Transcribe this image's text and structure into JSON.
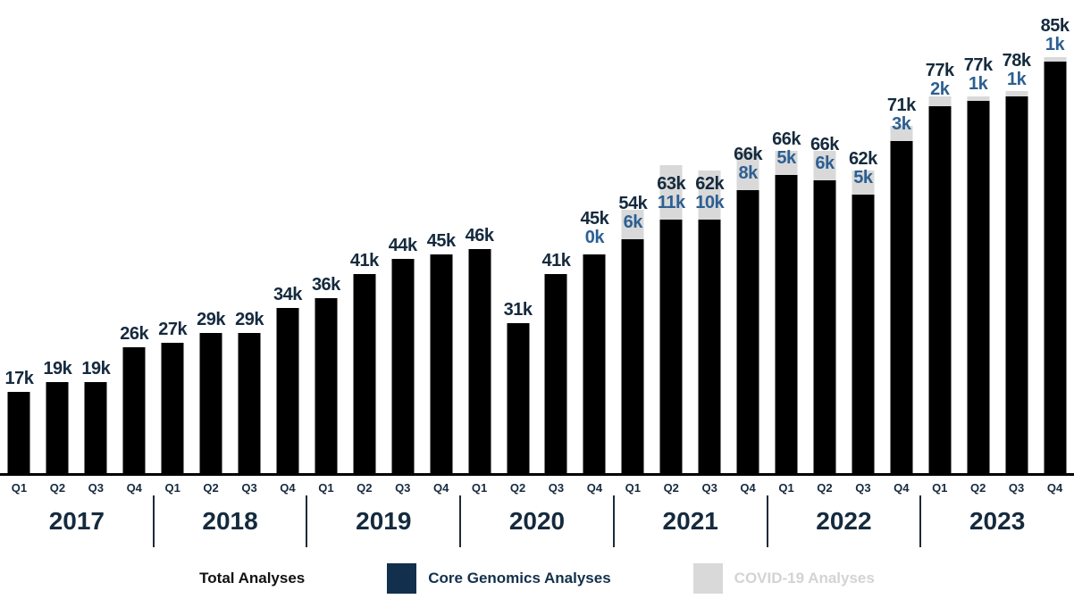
{
  "chart_data": {
    "type": "bar",
    "stacked": true,
    "title": "",
    "unit_suffix": "k",
    "ylim": [
      0,
      85
    ],
    "grid": false,
    "legend_position": "bottom",
    "categories": [
      "2017 Q1",
      "2017 Q2",
      "2017 Q3",
      "2017 Q4",
      "2018 Q1",
      "2018 Q2",
      "2018 Q3",
      "2018 Q4",
      "2019 Q1",
      "2019 Q2",
      "2019 Q3",
      "2019 Q4",
      "2020 Q1",
      "2020 Q2",
      "2020 Q3",
      "2020 Q4",
      "2021 Q1",
      "2021 Q2",
      "2021 Q3",
      "2021 Q4",
      "2022 Q1",
      "2022 Q2",
      "2022 Q3",
      "2022 Q4",
      "2023 Q1",
      "2023 Q2",
      "2023 Q3",
      "2023 Q4"
    ],
    "series": [
      {
        "name": "Core Genomics Analyses",
        "color": "#000000",
        "values": [
          17,
          19,
          19,
          26,
          27,
          29,
          29,
          34,
          36,
          41,
          44,
          45,
          46,
          31,
          41,
          45,
          48,
          52,
          52,
          58,
          61,
          60,
          57,
          68,
          75,
          76,
          77,
          84
        ]
      },
      {
        "name": "COVID-19 Analyses",
        "color": "#d9d9d9",
        "values": [
          0,
          0,
          0,
          0,
          0,
          0,
          0,
          0,
          0,
          0,
          0,
          0,
          0,
          0,
          0,
          0,
          6,
          11,
          10,
          8,
          5,
          6,
          5,
          3,
          2,
          1,
          1,
          1
        ]
      }
    ],
    "totals_k": [
      17,
      19,
      19,
      26,
      27,
      29,
      29,
      34,
      36,
      41,
      44,
      45,
      46,
      31,
      41,
      45,
      54,
      63,
      62,
      66,
      66,
      66,
      62,
      71,
      77,
      77,
      78,
      85
    ],
    "bars": [
      {
        "quarter": "Q1",
        "total_k": 17,
        "total_label": "17k",
        "covid_k": null,
        "covid_label": null
      },
      {
        "quarter": "Q2",
        "total_k": 19,
        "total_label": "19k",
        "covid_k": null,
        "covid_label": null
      },
      {
        "quarter": "Q3",
        "total_k": 19,
        "total_label": "19k",
        "covid_k": null,
        "covid_label": null
      },
      {
        "quarter": "Q4",
        "total_k": 26,
        "total_label": "26k",
        "covid_k": null,
        "covid_label": null
      },
      {
        "quarter": "Q1",
        "total_k": 27,
        "total_label": "27k",
        "covid_k": null,
        "covid_label": null
      },
      {
        "quarter": "Q2",
        "total_k": 29,
        "total_label": "29k",
        "covid_k": null,
        "covid_label": null
      },
      {
        "quarter": "Q3",
        "total_k": 29,
        "total_label": "29k",
        "covid_k": null,
        "covid_label": null
      },
      {
        "quarter": "Q4",
        "total_k": 34,
        "total_label": "34k",
        "covid_k": null,
        "covid_label": null
      },
      {
        "quarter": "Q1",
        "total_k": 36,
        "total_label": "36k",
        "covid_k": null,
        "covid_label": null
      },
      {
        "quarter": "Q2",
        "total_k": 41,
        "total_label": "41k",
        "covid_k": null,
        "covid_label": null
      },
      {
        "quarter": "Q3",
        "total_k": 44,
        "total_label": "44k",
        "covid_k": null,
        "covid_label": null
      },
      {
        "quarter": "Q4",
        "total_k": 45,
        "total_label": "45k",
        "covid_k": null,
        "covid_label": null
      },
      {
        "quarter": "Q1",
        "total_k": 46,
        "total_label": "46k",
        "covid_k": null,
        "covid_label": null
      },
      {
        "quarter": "Q2",
        "total_k": 31,
        "total_label": "31k",
        "covid_k": null,
        "covid_label": null
      },
      {
        "quarter": "Q3",
        "total_k": 41,
        "total_label": "41k",
        "covid_k": null,
        "covid_label": null
      },
      {
        "quarter": "Q4",
        "total_k": 45,
        "total_label": "45k",
        "covid_k": 0,
        "covid_label": "0k"
      },
      {
        "quarter": "Q1",
        "total_k": 54,
        "total_label": "54k",
        "covid_k": 6,
        "covid_label": "6k"
      },
      {
        "quarter": "Q2",
        "total_k": 63,
        "total_label": "63k",
        "covid_k": 11,
        "covid_label": "11k"
      },
      {
        "quarter": "Q3",
        "total_k": 62,
        "total_label": "62k",
        "covid_k": 10,
        "covid_label": "10k"
      },
      {
        "quarter": "Q4",
        "total_k": 66,
        "total_label": "66k",
        "covid_k": 8,
        "covid_label": "8k"
      },
      {
        "quarter": "Q1",
        "total_k": 66,
        "total_label": "66k",
        "covid_k": 5,
        "covid_label": "5k"
      },
      {
        "quarter": "Q2",
        "total_k": 66,
        "total_label": "66k",
        "covid_k": 6,
        "covid_label": "6k"
      },
      {
        "quarter": "Q3",
        "total_k": 62,
        "total_label": "62k",
        "covid_k": 5,
        "covid_label": "5k"
      },
      {
        "quarter": "Q4",
        "total_k": 71,
        "total_label": "71k",
        "covid_k": 3,
        "covid_label": "3k"
      },
      {
        "quarter": "Q1",
        "total_k": 77,
        "total_label": "77k",
        "covid_k": 2,
        "covid_label": "2k"
      },
      {
        "quarter": "Q2",
        "total_k": 77,
        "total_label": "77k",
        "covid_k": 1,
        "covid_label": "1k"
      },
      {
        "quarter": "Q3",
        "total_k": 78,
        "total_label": "78k",
        "covid_k": 1,
        "covid_label": "1k"
      },
      {
        "quarter": "Q4",
        "total_k": 85,
        "total_label": "85k",
        "covid_k": 1,
        "covid_label": "1k"
      }
    ],
    "years": [
      {
        "label": "2017"
      },
      {
        "label": "2018"
      },
      {
        "label": "2019"
      },
      {
        "label": "2020"
      },
      {
        "label": "2021"
      },
      {
        "label": "2022"
      },
      {
        "label": "2023"
      }
    ]
  },
  "legend": {
    "total_label": "Total Analyses",
    "core_label": "Core Genomics Analyses",
    "covid_label": "COVID-19 Analyses"
  },
  "colors": {
    "bar_core": "#000000",
    "bar_covid": "#d9d9d9",
    "label_total": "#152a3e",
    "label_covid": "#2d5f91",
    "axis_text": "#152a3e",
    "legend_total_text": "#111111",
    "legend_core_text": "#12304d",
    "legend_core_swatch": "#12304d",
    "legend_covid_text": "#d3d3d3",
    "legend_covid_swatch": "#d9d9d9"
  }
}
